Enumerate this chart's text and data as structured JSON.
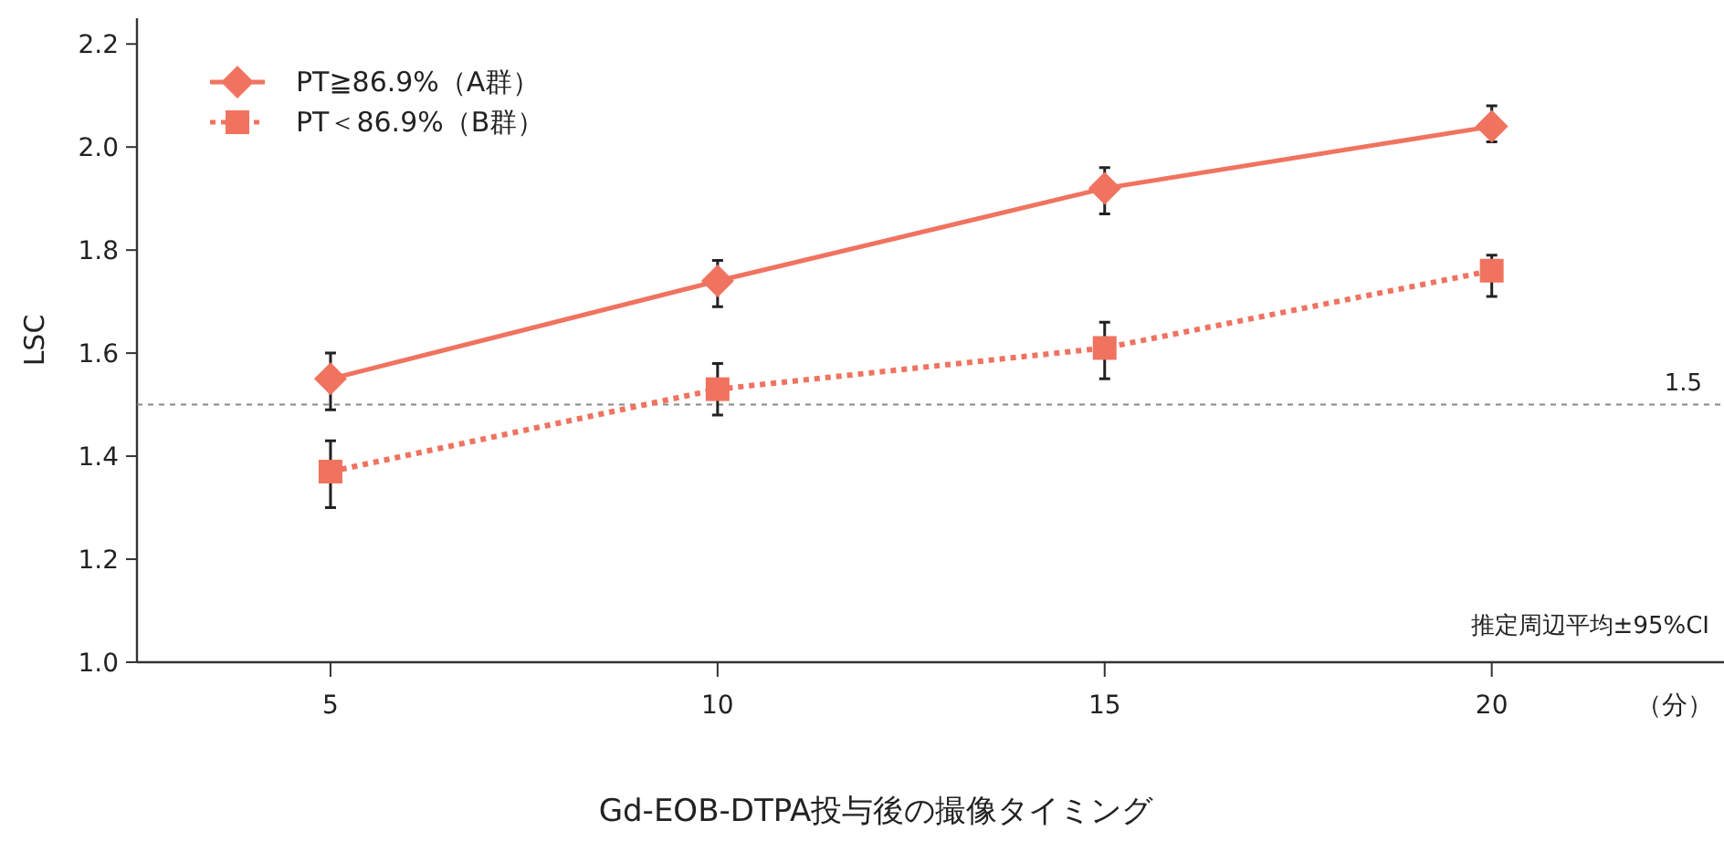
{
  "chart_data": {
    "type": "line",
    "xlabel": "Gd-EOB-DTPA投与後の撮像タイミング",
    "ylabel": "LSC",
    "x": [
      5,
      10,
      15,
      20
    ],
    "xlim": [
      2.5,
      23
    ],
    "xticks": [
      5,
      10,
      15,
      20
    ],
    "ylim": [
      1.0,
      2.25
    ],
    "yticks": [
      {
        "value": 1.0,
        "label": "1.0"
      },
      {
        "value": 1.2,
        "label": "1.2"
      },
      {
        "value": 1.4,
        "label": "1.4"
      },
      {
        "value": 1.6,
        "label": "1.6"
      },
      {
        "value": 1.8,
        "label": "1.8"
      },
      {
        "value": 2.0,
        "label": "2.0"
      },
      {
        "value": 2.2,
        "label": "2.2"
      }
    ],
    "series": [
      {
        "name": "PT≧86.9%（A群）",
        "color": "#f07360",
        "marker": "diamond",
        "line_style": "solid",
        "values": [
          1.55,
          1.74,
          1.92,
          2.04
        ],
        "errors": [
          [
            1.49,
            1.6
          ],
          [
            1.69,
            1.78
          ],
          [
            1.87,
            1.96
          ],
          [
            2.01,
            2.08
          ]
        ]
      },
      {
        "name": "PT＜86.9%（B群）",
        "color": "#f07360",
        "marker": "square",
        "line_style": "dotted",
        "values": [
          1.37,
          1.53,
          1.61,
          1.76
        ],
        "errors": [
          [
            1.3,
            1.43
          ],
          [
            1.48,
            1.58
          ],
          [
            1.55,
            1.66
          ],
          [
            1.71,
            1.79
          ]
        ]
      }
    ],
    "ref_lines": [
      {
        "axis": "y",
        "value": 1.5,
        "label": "1.5",
        "color": "#888888",
        "line_style": "dashed"
      }
    ],
    "annotations": [
      "推定周辺平均±95%CI",
      "（分）"
    ],
    "legend": "top left",
    "grid": false
  }
}
